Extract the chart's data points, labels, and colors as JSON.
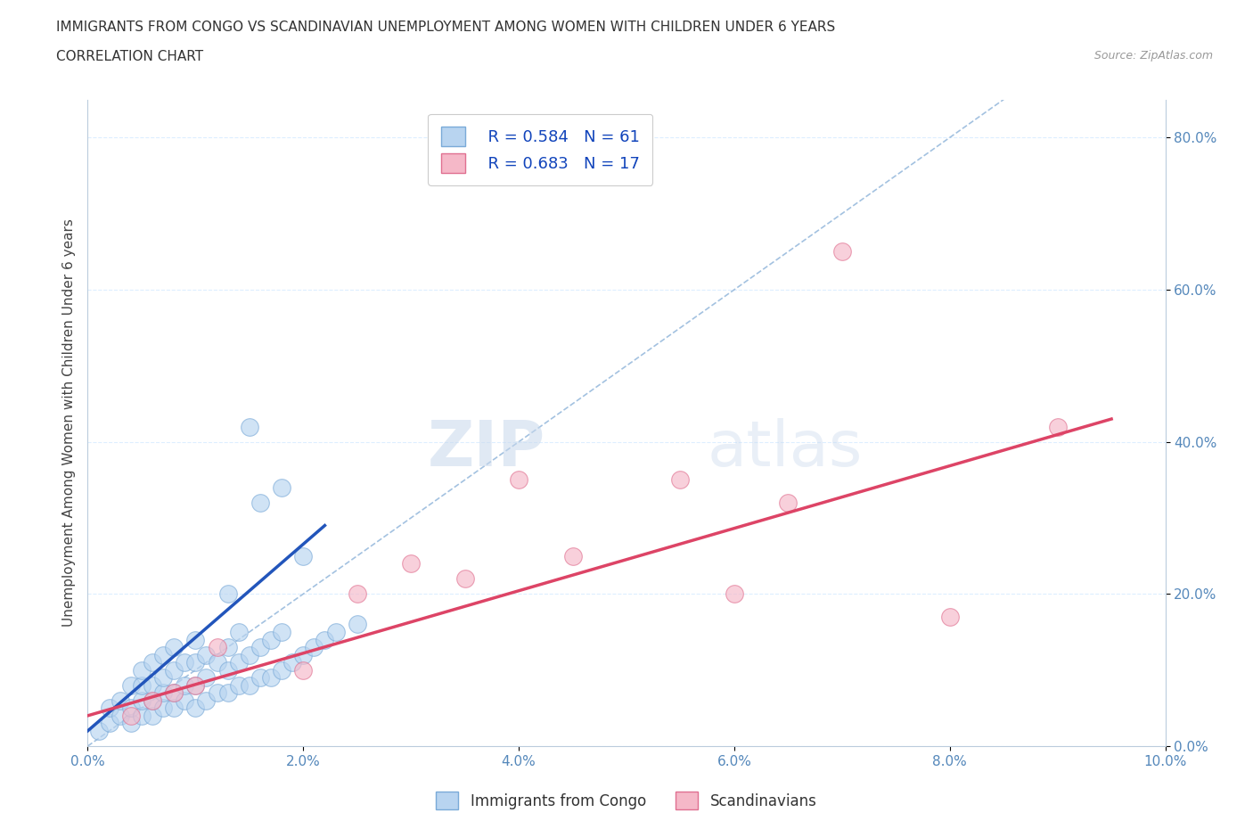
{
  "title_line1": "IMMIGRANTS FROM CONGO VS SCANDINAVIAN UNEMPLOYMENT AMONG WOMEN WITH CHILDREN UNDER 6 YEARS",
  "title_line2": "CORRELATION CHART",
  "source": "Source: ZipAtlas.com",
  "ylabel": "Unemployment Among Women with Children Under 6 years",
  "watermark_zip": "ZIP",
  "watermark_atlas": "atlas",
  "legend_blue_label": "Immigrants from Congo",
  "legend_pink_label": "Scandinavians",
  "legend_blue_R": "R = 0.584",
  "legend_blue_N": "N = 61",
  "legend_pink_R": "R = 0.683",
  "legend_pink_N": "N = 17",
  "xlim": [
    0.0,
    0.1
  ],
  "ylim": [
    0.0,
    0.85
  ],
  "xticks": [
    0.0,
    0.02,
    0.04,
    0.06,
    0.08,
    0.1
  ],
  "xtick_labels": [
    "0.0%",
    "2.0%",
    "4.0%",
    "6.0%",
    "8.0%",
    "10.0%"
  ],
  "yticks": [
    0.0,
    0.2,
    0.4,
    0.6,
    0.8
  ],
  "ytick_labels": [
    "0.0%",
    "20.0%",
    "40.0%",
    "60.0%",
    "80.0%"
  ],
  "blue_color": "#b8d4f0",
  "blue_edge": "#7aaad8",
  "blue_line_color": "#2255bb",
  "pink_color": "#f5b8c8",
  "pink_edge": "#e07090",
  "pink_line_color": "#dd4466",
  "diag_color": "#99bbdd",
  "grid_color": "#ddeeff",
  "bg_color": "#ffffff",
  "blue_scatter_x": [
    0.001,
    0.002,
    0.002,
    0.003,
    0.003,
    0.004,
    0.004,
    0.004,
    0.005,
    0.005,
    0.005,
    0.005,
    0.006,
    0.006,
    0.006,
    0.006,
    0.007,
    0.007,
    0.007,
    0.007,
    0.008,
    0.008,
    0.008,
    0.008,
    0.009,
    0.009,
    0.009,
    0.01,
    0.01,
    0.01,
    0.01,
    0.011,
    0.011,
    0.011,
    0.012,
    0.012,
    0.013,
    0.013,
    0.013,
    0.014,
    0.014,
    0.014,
    0.015,
    0.015,
    0.016,
    0.016,
    0.017,
    0.017,
    0.018,
    0.018,
    0.019,
    0.02,
    0.021,
    0.022,
    0.023,
    0.025,
    0.016,
    0.018,
    0.02,
    0.015,
    0.013
  ],
  "blue_scatter_y": [
    0.02,
    0.03,
    0.05,
    0.04,
    0.06,
    0.03,
    0.05,
    0.08,
    0.04,
    0.06,
    0.08,
    0.1,
    0.04,
    0.06,
    0.08,
    0.11,
    0.05,
    0.07,
    0.09,
    0.12,
    0.05,
    0.07,
    0.1,
    0.13,
    0.06,
    0.08,
    0.11,
    0.05,
    0.08,
    0.11,
    0.14,
    0.06,
    0.09,
    0.12,
    0.07,
    0.11,
    0.07,
    0.1,
    0.13,
    0.08,
    0.11,
    0.15,
    0.08,
    0.12,
    0.09,
    0.13,
    0.09,
    0.14,
    0.1,
    0.15,
    0.11,
    0.12,
    0.13,
    0.14,
    0.15,
    0.16,
    0.32,
    0.34,
    0.25,
    0.42,
    0.2
  ],
  "pink_scatter_x": [
    0.004,
    0.006,
    0.008,
    0.01,
    0.012,
    0.02,
    0.025,
    0.03,
    0.035,
    0.04,
    0.045,
    0.055,
    0.06,
    0.065,
    0.07,
    0.08,
    0.09
  ],
  "pink_scatter_y": [
    0.04,
    0.06,
    0.07,
    0.08,
    0.13,
    0.1,
    0.2,
    0.24,
    0.22,
    0.35,
    0.25,
    0.35,
    0.2,
    0.32,
    0.65,
    0.17,
    0.42
  ],
  "blue_line_x": [
    0.0,
    0.022
  ],
  "blue_line_y": [
    0.02,
    0.29
  ],
  "pink_line_x": [
    0.0,
    0.095
  ],
  "pink_line_y": [
    0.04,
    0.43
  ],
  "diag_line_x": [
    0.0,
    0.085
  ],
  "diag_line_y": [
    0.0,
    0.85
  ]
}
